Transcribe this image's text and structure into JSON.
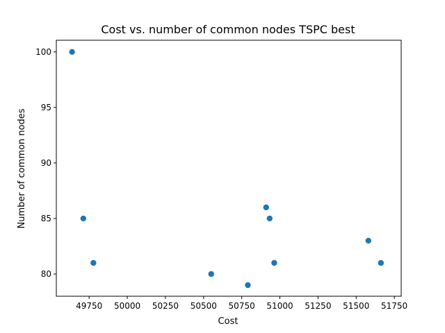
{
  "chart_data": {
    "type": "scatter",
    "title": "Cost vs. number of common nodes TSPC best",
    "xlabel": "Cost",
    "ylabel": "Number of common nodes",
    "xlim": [
      49535,
      51795
    ],
    "ylim": [
      78.0,
      101.05
    ],
    "xticks": [
      49750,
      50000,
      50250,
      50500,
      50750,
      51000,
      51250,
      51500,
      51750
    ],
    "yticks": [
      80,
      85,
      90,
      95,
      100
    ],
    "grid": false,
    "series": [
      {
        "color": "#1f77b4",
        "points": [
          {
            "x": 49638,
            "y": 100
          },
          {
            "x": 49712,
            "y": 85
          },
          {
            "x": 49778,
            "y": 81
          },
          {
            "x": 50550,
            "y": 80
          },
          {
            "x": 50790,
            "y": 79
          },
          {
            "x": 50910,
            "y": 86
          },
          {
            "x": 50933,
            "y": 85
          },
          {
            "x": 50963,
            "y": 81
          },
          {
            "x": 51580,
            "y": 83
          },
          {
            "x": 51662,
            "y": 81
          }
        ]
      }
    ]
  }
}
